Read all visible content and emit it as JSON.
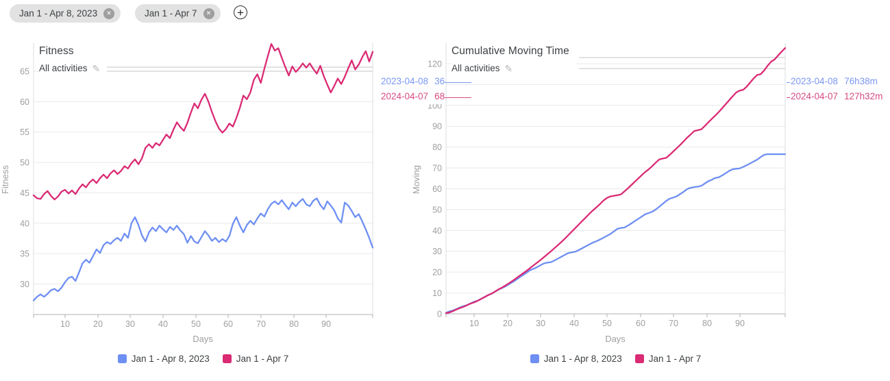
{
  "chips": [
    {
      "label": "Jan 1 - Apr 8, 2023"
    },
    {
      "label": "Jan 1 - Apr 7"
    }
  ],
  "ui_colors": {
    "accent_blue": "#6e8ff3",
    "accent_pink": "#da2a74",
    "blue_label": "#7b97f3",
    "pink_label": "#d64b82",
    "axis_text": "#9e9e9e",
    "dark_text": "#3c4043",
    "chip_bg": "#e2e2e2"
  },
  "chart_data": [
    {
      "type": "line",
      "title": "Fitness",
      "subtitle": "All activities",
      "xlabel": "Days",
      "ylabel": "Fitness",
      "x_ticks": [
        10,
        20,
        30,
        40,
        50,
        60,
        70,
        80,
        90
      ],
      "y_ticks": [
        65,
        60,
        55,
        50,
        45,
        40,
        35,
        30
      ],
      "ylim": [
        24.5,
        69.8
      ],
      "xlim": [
        1,
        98
      ],
      "grid": "horizontal",
      "legend_position": "bottom",
      "series": [
        {
          "name": "Jan 1 - Apr 8, 2023",
          "color": "#6e8ff3",
          "values": [
            27.3,
            27.9,
            28.3,
            27.9,
            28.4,
            29.0,
            29.2,
            28.8,
            29.4,
            30.3,
            31.0,
            31.2,
            30.5,
            31.9,
            33.4,
            34.0,
            33.5,
            34.6,
            35.7,
            35.1,
            36.4,
            36.9,
            36.6,
            37.2,
            37.6,
            37.1,
            38.3,
            37.6,
            40.0,
            41.0,
            39.7,
            38.0,
            37.0,
            38.5,
            39.3,
            38.7,
            39.6,
            39.0,
            38.5,
            39.4,
            38.9,
            39.6,
            38.8,
            38.2,
            36.8,
            37.9,
            37.0,
            36.7,
            37.7,
            38.7,
            38.0,
            37.1,
            37.6,
            36.9,
            37.4,
            37.0,
            37.9,
            39.9,
            41.0,
            39.6,
            38.5,
            39.7,
            40.4,
            39.8,
            40.8,
            41.6,
            41.1,
            42.3,
            43.2,
            43.6,
            43.1,
            43.8,
            43.0,
            42.3,
            43.4,
            42.8,
            43.5,
            44.0,
            43.1,
            42.8,
            43.7,
            44.1,
            43.0,
            42.3,
            43.6,
            42.9,
            42.1,
            40.8,
            40.1,
            43.4,
            42.9,
            42.0,
            41.0,
            41.5,
            40.3,
            39.0,
            37.6,
            36.0
          ]
        },
        {
          "name": "Jan 1 - Apr 7",
          "color": "#da2a74",
          "values": [
            44.6,
            44.1,
            44.0,
            44.8,
            45.3,
            44.5,
            43.9,
            44.4,
            45.2,
            45.5,
            44.9,
            45.4,
            44.8,
            45.7,
            46.4,
            45.9,
            46.7,
            47.2,
            46.6,
            47.4,
            48.0,
            47.4,
            48.2,
            48.7,
            48.1,
            48.6,
            49.4,
            49.0,
            49.9,
            50.5,
            49.7,
            50.7,
            52.4,
            53.0,
            52.4,
            53.2,
            52.8,
            53.7,
            54.6,
            54.0,
            55.4,
            56.6,
            55.8,
            55.2,
            56.5,
            58.2,
            59.7,
            58.9,
            60.3,
            61.3,
            60.0,
            58.3,
            56.8,
            55.6,
            54.9,
            55.5,
            56.4,
            55.9,
            57.3,
            59.0,
            61.0,
            60.4,
            61.5,
            63.6,
            64.5,
            63.1,
            65.4,
            67.5,
            69.5,
            68.4,
            68.8,
            67.2,
            65.7,
            64.3,
            65.8,
            64.9,
            65.5,
            66.3,
            65.6,
            66.3,
            65.4,
            64.6,
            65.9,
            64.2,
            62.8,
            61.5,
            62.6,
            63.8,
            62.9,
            64.1,
            65.5,
            66.8,
            65.3,
            66.1,
            67.3,
            68.3,
            66.6,
            68.2
          ]
        }
      ],
      "end_labels": [
        {
          "date": "2023-04-08",
          "value": "36",
          "color": "#7b97f3"
        },
        {
          "date": "2024-04-07",
          "value": "68",
          "color": "#d64b82"
        }
      ]
    },
    {
      "type": "line",
      "title": "Cumulative Moving Time",
      "subtitle": "All activities",
      "xlabel": "Days",
      "ylabel": "Moving",
      "x_ticks": [
        10,
        20,
        30,
        40,
        50,
        60,
        70,
        80,
        90
      ],
      "y_ticks": [
        120,
        110,
        100,
        90,
        80,
        70,
        60,
        50,
        40,
        30,
        20,
        10,
        0
      ],
      "ylim": [
        0,
        130
      ],
      "xlim": [
        1,
        98
      ],
      "grid": "horizontal",
      "legend_position": "bottom",
      "series": [
        {
          "name": "Jan 1 - Apr 8, 2023",
          "color": "#6e8ff3",
          "values": [
            0.5,
            1.2,
            1.6,
            2.3,
            3.1,
            3.7,
            4.2,
            5.0,
            5.8,
            6.3,
            7.2,
            8.1,
            9.0,
            9.6,
            10.6,
            11.6,
            12.4,
            13.2,
            14.2,
            15.2,
            16.3,
            17.5,
            18.6,
            19.7,
            20.9,
            21.6,
            22.4,
            23.3,
            24.2,
            24.6,
            24.8,
            25.6,
            26.5,
            27.4,
            28.3,
            29.2,
            29.5,
            29.8,
            30.6,
            31.5,
            32.4,
            33.3,
            34.2,
            34.8,
            35.6,
            36.5,
            37.4,
            38.3,
            39.5,
            40.8,
            41.2,
            41.4,
            42.3,
            43.4,
            44.5,
            45.6,
            46.7,
            47.8,
            48.4,
            49.0,
            50.1,
            51.4,
            52.8,
            54.2,
            55.3,
            55.8,
            56.4,
            57.5,
            58.6,
            59.9,
            60.5,
            60.8,
            61.0,
            61.4,
            62.5,
            63.6,
            64.3,
            65.2,
            65.5,
            66.4,
            67.5,
            68.6,
            69.4,
            69.6,
            69.8,
            70.5,
            71.3,
            72.2,
            73.1,
            74.0,
            75.2,
            76.3,
            76.6,
            76.6,
            76.6,
            76.6,
            76.6,
            76.6
          ]
        },
        {
          "name": "Jan 1 - Apr 7",
          "color": "#da2a74",
          "values": [
            0.3,
            0.7,
            1.3,
            2.1,
            2.8,
            3.4,
            4.1,
            4.9,
            5.5,
            6.2,
            7.1,
            8.0,
            8.9,
            9.7,
            10.7,
            11.7,
            12.6,
            13.6,
            14.7,
            15.8,
            17.0,
            18.2,
            19.4,
            20.6,
            21.9,
            23.2,
            24.5,
            25.8,
            27.2,
            28.6,
            30.0,
            31.5,
            33.0,
            34.5,
            36.1,
            37.8,
            39.5,
            41.2,
            42.9,
            44.6,
            46.3,
            48.0,
            49.6,
            51.1,
            52.6,
            54.3,
            55.6,
            56.3,
            56.6,
            56.9,
            57.3,
            58.7,
            60.2,
            61.8,
            63.4,
            65.0,
            66.6,
            68.1,
            69.4,
            70.9,
            72.6,
            74.1,
            74.5,
            74.9,
            76.3,
            77.9,
            79.5,
            81.1,
            82.8,
            84.6,
            86.1,
            87.7,
            88.1,
            88.5,
            90.1,
            91.8,
            93.5,
            95.1,
            96.8,
            98.7,
            100.6,
            102.5,
            104.4,
            106.2,
            107.1,
            107.5,
            109.0,
            111.0,
            113.0,
            114.6,
            115.0,
            116.8,
            119.1,
            121.0,
            122.1,
            124.0,
            125.8,
            127.5
          ]
        }
      ],
      "end_labels": [
        {
          "date": "2023-04-08",
          "value": "76h38m",
          "color": "#7b97f3"
        },
        {
          "date": "2024-04-07",
          "value": "127h32m",
          "color": "#d64b82"
        }
      ]
    }
  ]
}
